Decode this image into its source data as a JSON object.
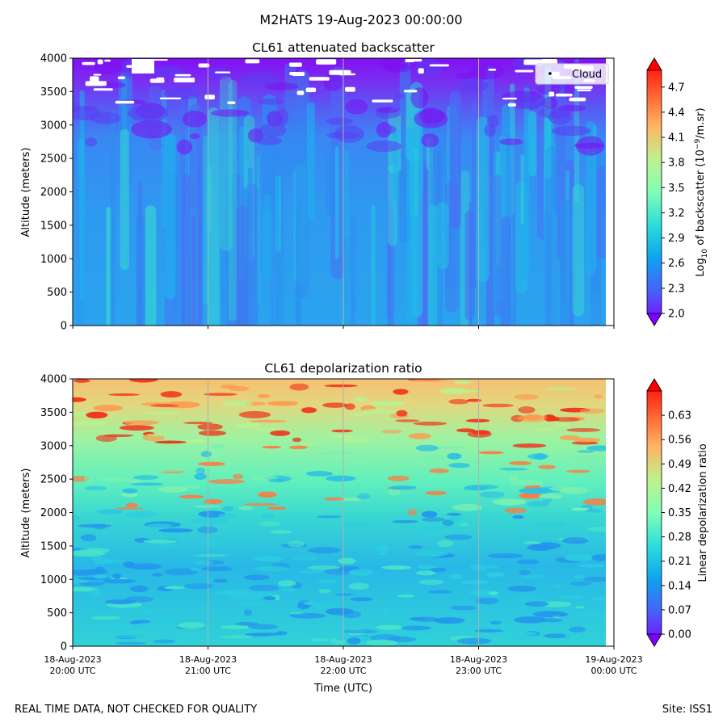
{
  "figure": {
    "suptitle": "M2HATS 19-Aug-2023 00:00:00",
    "footer_left": "REAL TIME DATA, NOT CHECKED FOR QUALITY",
    "footer_right": "Site: ISS1"
  },
  "chart_data": [
    {
      "type": "heatmap",
      "title": "CL61 attenuated backscatter",
      "ylabel": "Altitude (meters)",
      "xlabel": "",
      "x_ticks": [
        0,
        1,
        2,
        3,
        4
      ],
      "y_ticks": [
        0,
        500,
        1000,
        1500,
        2000,
        2500,
        3000,
        3500,
        4000
      ],
      "xlim": [
        0,
        4
      ],
      "ylim": [
        0,
        4000
      ],
      "colorbar": {
        "label_prefix": "Log",
        "label_sub": "10",
        "label_mid": " of backscatter (10",
        "label_sup": "−9",
        "label_suffix": "/m.sr)",
        "ticks": [
          "2.0",
          "2.3",
          "2.6",
          "2.9",
          "3.2",
          "3.5",
          "3.8",
          "4.1",
          "4.4",
          "4.7"
        ],
        "range": [
          2.0,
          4.9
        ],
        "cmap": "rainbow"
      },
      "legend": {
        "label": "Cloud",
        "position": "top-right"
      },
      "colors": {
        "background": "#2f93f0",
        "mid": "#2cc8e0",
        "low": "#7b2cf0",
        "cloud": "#ffffff"
      }
    },
    {
      "type": "heatmap",
      "title": "CL61 depolarization ratio",
      "ylabel": "Altitude (meters)",
      "xlabel": "Time (UTC)",
      "x_ticks": [
        0,
        1,
        2,
        3,
        4
      ],
      "x_tick_labels": [
        [
          "18-Aug-2023",
          "20:00 UTC"
        ],
        [
          "18-Aug-2023",
          "21:00 UTC"
        ],
        [
          "18-Aug-2023",
          "22:00 UTC"
        ],
        [
          "18-Aug-2023",
          "23:00 UTC"
        ],
        [
          "19-Aug-2023",
          "00:00 UTC"
        ]
      ],
      "y_ticks": [
        0,
        500,
        1000,
        1500,
        2000,
        2500,
        3000,
        3500,
        4000
      ],
      "xlim": [
        0,
        4
      ],
      "ylim": [
        0,
        4000
      ],
      "colorbar": {
        "label": "Linear depolarization ratio",
        "ticks": [
          "0.00",
          "0.07",
          "0.14",
          "0.21",
          "0.28",
          "0.35",
          "0.42",
          "0.49",
          "0.56",
          "0.63"
        ],
        "range": [
          0.0,
          0.7
        ],
        "cmap": "rainbow"
      },
      "colors": {
        "background": "#3cd8d0",
        "low": "#2ab0e8",
        "high": "#f03020"
      }
    }
  ]
}
